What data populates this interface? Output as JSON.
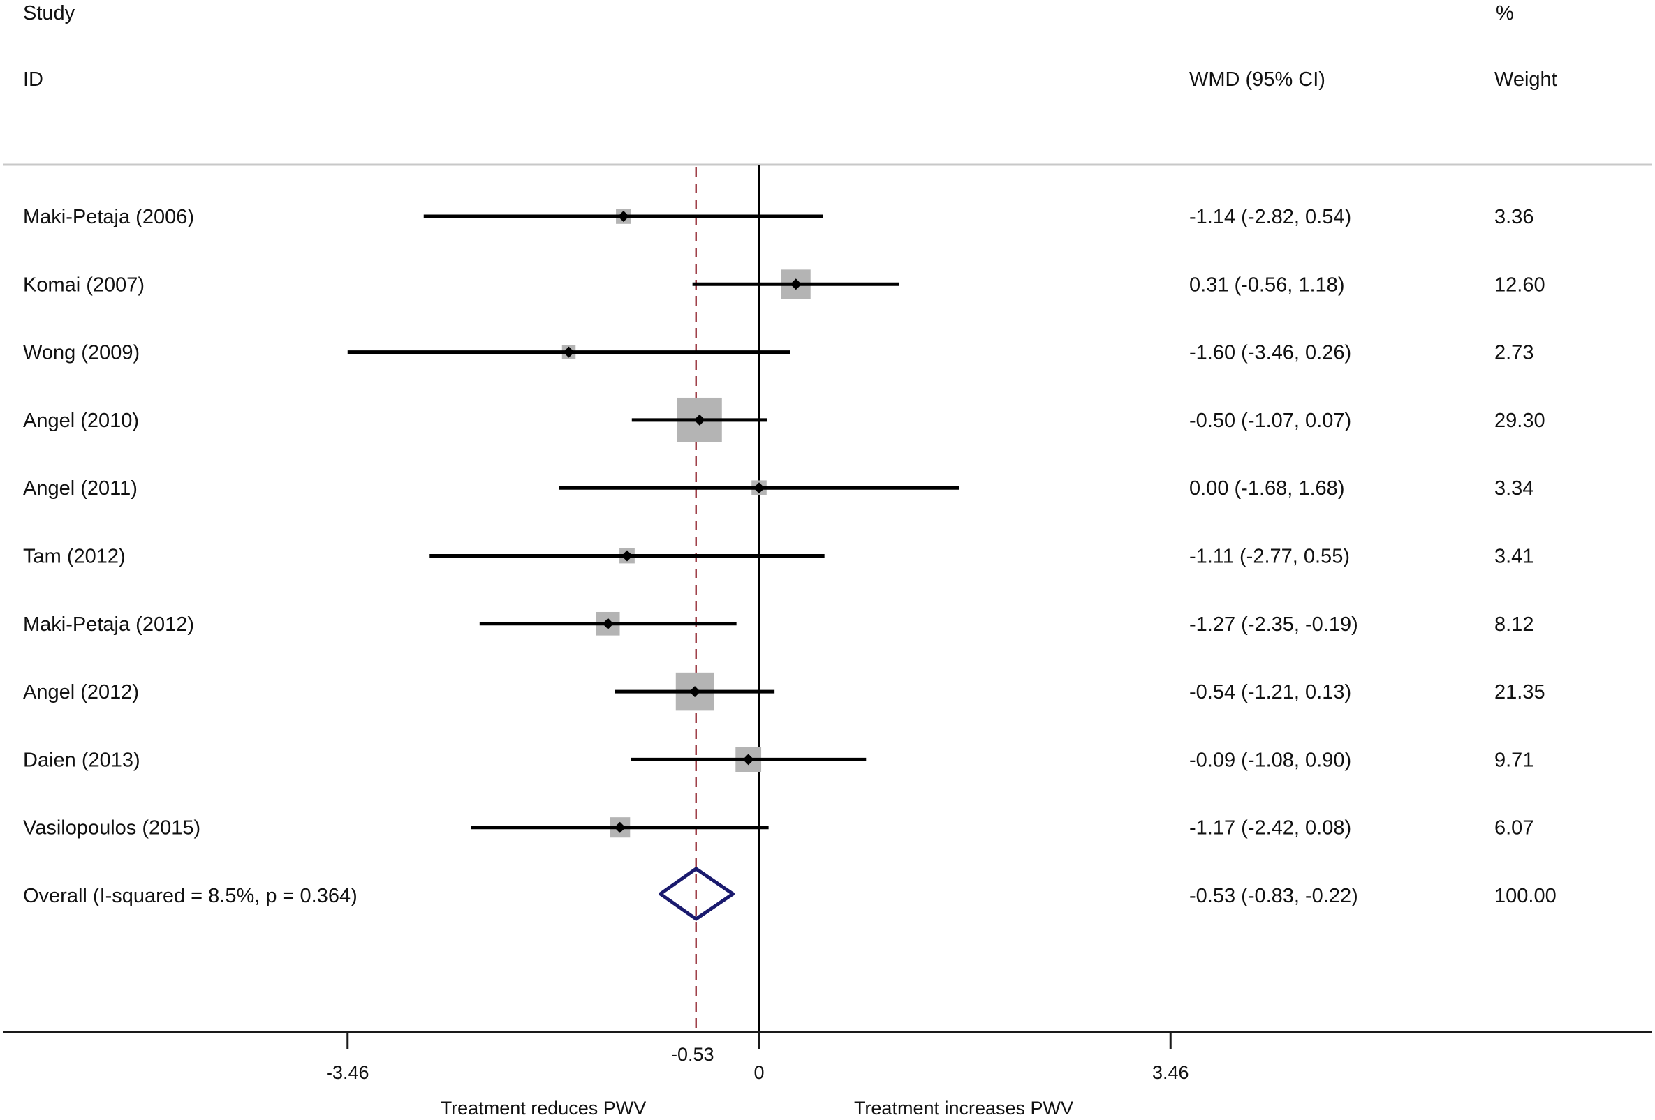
{
  "chart_data": {
    "type": "forest",
    "title": "",
    "headers": {
      "study_line1": "Study",
      "study_line2": "ID",
      "effect": "WMD (95% CI)",
      "weight_line1": "%",
      "weight_line2": "Weight"
    },
    "studies": [
      {
        "label": "Maki-Petaja (2006)",
        "wmd": -1.14,
        "lower": -2.82,
        "upper": 0.54,
        "ci_text": "-1.14 (-2.82, 0.54)",
        "weight": 3.36,
        "weight_text": "3.36"
      },
      {
        "label": "Komai (2007)",
        "wmd": 0.31,
        "lower": -0.56,
        "upper": 1.18,
        "ci_text": "0.31 (-0.56, 1.18)",
        "weight": 12.6,
        "weight_text": "12.60"
      },
      {
        "label": "Wong (2009)",
        "wmd": -1.6,
        "lower": -3.46,
        "upper": 0.26,
        "ci_text": "-1.60 (-3.46, 0.26)",
        "weight": 2.73,
        "weight_text": "2.73"
      },
      {
        "label": "Angel (2010)",
        "wmd": -0.5,
        "lower": -1.07,
        "upper": 0.07,
        "ci_text": "-0.50 (-1.07, 0.07)",
        "weight": 29.3,
        "weight_text": "29.30"
      },
      {
        "label": "Angel (2011)",
        "wmd": 0.0,
        "lower": -1.68,
        "upper": 1.68,
        "ci_text": "0.00 (-1.68, 1.68)",
        "weight": 3.34,
        "weight_text": "3.34"
      },
      {
        "label": "Tam (2012)",
        "wmd": -1.11,
        "lower": -2.77,
        "upper": 0.55,
        "ci_text": "-1.11 (-2.77, 0.55)",
        "weight": 3.41,
        "weight_text": "3.41"
      },
      {
        "label": "Maki-Petaja (2012)",
        "wmd": -1.27,
        "lower": -2.35,
        "upper": -0.19,
        "ci_text": "-1.27 (-2.35, -0.19)",
        "weight": 8.12,
        "weight_text": "8.12"
      },
      {
        "label": "Angel (2012)",
        "wmd": -0.54,
        "lower": -1.21,
        "upper": 0.13,
        "ci_text": "-0.54 (-1.21, 0.13)",
        "weight": 21.35,
        "weight_text": "21.35"
      },
      {
        "label": "Daien (2013)",
        "wmd": -0.09,
        "lower": -1.08,
        "upper": 0.9,
        "ci_text": "-0.09 (-1.08, 0.90)",
        "weight": 9.71,
        "weight_text": "9.71"
      },
      {
        "label": "Vasilopoulos (2015)",
        "wmd": -1.17,
        "lower": -2.42,
        "upper": 0.08,
        "ci_text": "-1.17 (-2.42, 0.08)",
        "weight": 6.07,
        "weight_text": "6.07"
      }
    ],
    "overall": {
      "label": "Overall  (I-squared = 8.5%, p = 0.364)",
      "wmd": -0.53,
      "lower": -0.83,
      "upper": -0.22,
      "ci_text": "-0.53 (-0.83, -0.22)",
      "weight": 100.0,
      "weight_text": "100.00",
      "i_squared_pct": 8.5,
      "p_value": 0.364
    },
    "x_axis": {
      "range": [
        -4.0,
        7.5
      ],
      "ticks": [
        {
          "value": -3.46,
          "label": "-3.46"
        },
        {
          "value": 0,
          "label": "0"
        },
        {
          "value": 3.46,
          "label": "3.46"
        }
      ],
      "overall_marker": {
        "value": -0.53,
        "label": "-0.53"
      },
      "left_direction_label": "Treatment reduces PWV",
      "right_direction_label": "Treatment increases PWV"
    },
    "colors": {
      "ci_line": "#000000",
      "weight_box": "#b4b4b4",
      "point": "#000000",
      "overall_diamond": "#1a1a6e",
      "overall_dashed_line": "#a0404a",
      "null_line": "#000000",
      "header_rule": "#c8c8c8",
      "axis": "#1a1a1a"
    },
    "grid": false,
    "legend": "none"
  }
}
